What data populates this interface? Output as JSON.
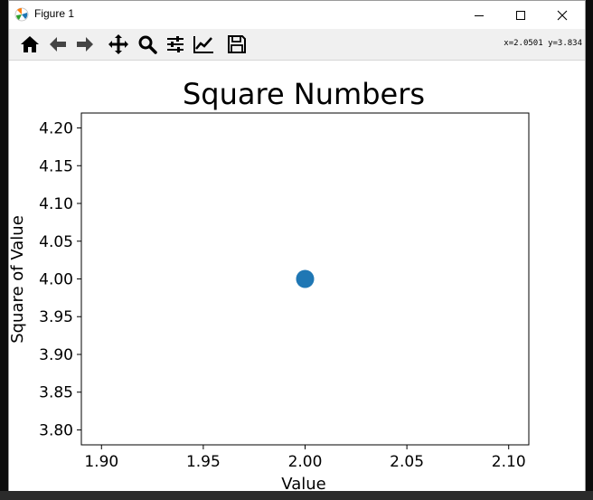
{
  "window": {
    "title": "Figure 1",
    "coords_readout": "x=2.0501 y=3.834"
  },
  "toolbar": {
    "buttons": [
      {
        "icon": "home-icon",
        "name": "home-button"
      },
      {
        "icon": "back-arrow-icon",
        "name": "back-button"
      },
      {
        "icon": "forward-arrow-icon",
        "name": "forward-button"
      },
      {
        "icon": "pan-move-icon",
        "name": "pan-button"
      },
      {
        "icon": "zoom-magnifier-icon",
        "name": "zoom-button"
      },
      {
        "icon": "configure-subplots-icon",
        "name": "subplots-button"
      },
      {
        "icon": "edit-axis-icon",
        "name": "edit-axis-button"
      },
      {
        "icon": "save-floppy-icon",
        "name": "save-button"
      }
    ]
  },
  "chart_data": {
    "type": "scatter",
    "title": "Square Numbers",
    "xlabel": "Value",
    "ylabel": "Square of Value",
    "x": [
      2
    ],
    "y": [
      4
    ],
    "xlim": [
      1.9,
      2.1
    ],
    "ylim": [
      3.8,
      4.2
    ],
    "xticks": [
      "1.90",
      "1.95",
      "2.00",
      "2.05",
      "2.10"
    ],
    "yticks": [
      "3.80",
      "3.85",
      "3.90",
      "3.95",
      "4.00",
      "4.05",
      "4.10",
      "4.15",
      "4.20"
    ],
    "marker_color": "#1f77b4",
    "grid": false
  }
}
